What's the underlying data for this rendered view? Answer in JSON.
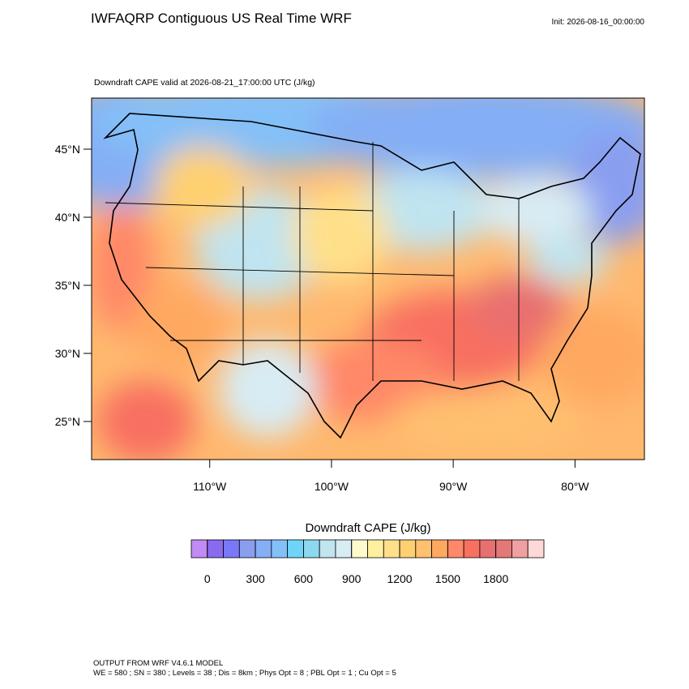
{
  "chart_data": {
    "type": "map",
    "title": "IWFAQRP Contiguous US Real Time WRF",
    "init": "Init: 2026-08-16_00:00:00",
    "subtitle": "Downdraft CAPE valid at 2026-08-21_17:00:00 UTC   (J/kg)",
    "xlim": [
      -119.7,
      -74.3
    ],
    "ylim": [
      22.2,
      48.75
    ],
    "xticks": [
      {
        "value": -110,
        "label": "110°W"
      },
      {
        "value": -100,
        "label": "100°W"
      },
      {
        "value": -90,
        "label": "90°W"
      },
      {
        "value": -80,
        "label": "80°W"
      }
    ],
    "yticks": [
      {
        "value": 45,
        "label": "45°N"
      },
      {
        "value": 40,
        "label": "40°N"
      },
      {
        "value": 35,
        "label": "35°N"
      },
      {
        "value": 30,
        "label": "30°N"
      },
      {
        "value": 25,
        "label": "25°N"
      }
    ],
    "colorbar": {
      "title": "Downdraft CAPE  (J/kg)",
      "lim": [
        -100,
        2100
      ],
      "ticks": [
        0,
        300,
        600,
        900,
        1200,
        1500,
        1800
      ],
      "colors": [
        "#c08bf5",
        "#8a6bf0",
        "#7878f8",
        "#8a9ef0",
        "#84aef5",
        "#84c0f8",
        "#70d4f8",
        "#8cd8f0",
        "#c0e4f0",
        "#d8ecf4",
        "#fffacc",
        "#fff0a0",
        "#ffe08a",
        "#ffd070",
        "#ffc070",
        "#ffa860",
        "#ff8868",
        "#f87060",
        "#e87070",
        "#e47878",
        "#f0a0a0",
        "#ffd8d8"
      ]
    },
    "footer": [
      "OUTPUT FROM WRF V4.6.1 MODEL",
      "WE = 580 ; SN = 380 ; Levels = 38 ; Dis = 8km ; Phys Opt = 8 ; PBL Opt = 1 ; Cu Opt = 5"
    ]
  }
}
